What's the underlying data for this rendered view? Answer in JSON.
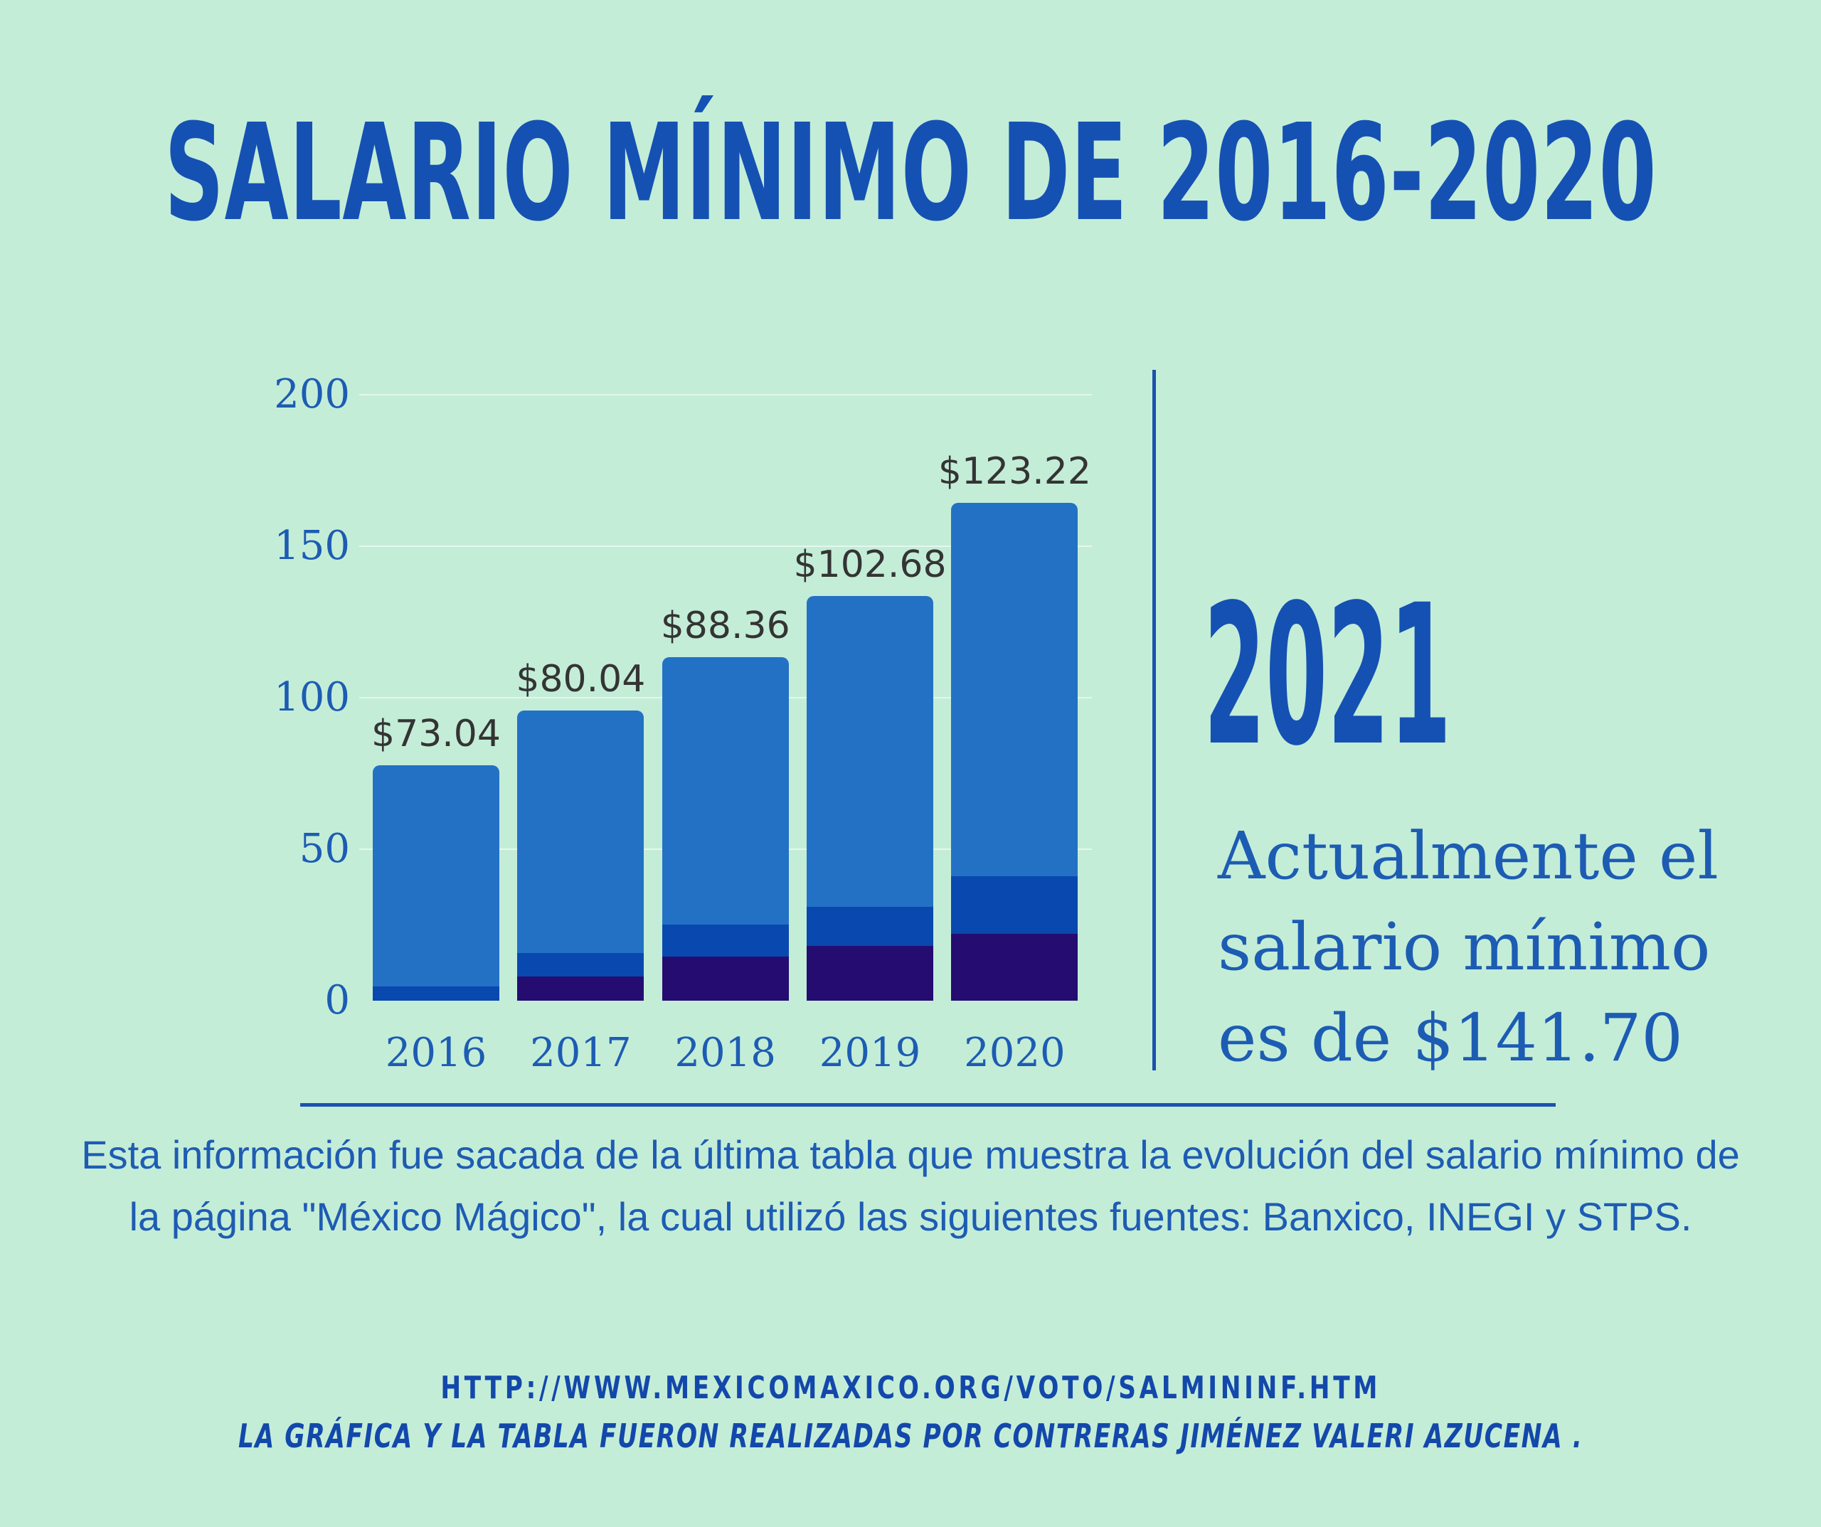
{
  "page": {
    "background": "#c4edd8",
    "accent_blue": "#1551b3",
    "line_blue": "#1c52ae"
  },
  "title": {
    "text": "SALARIO MÍNIMO DE 2016-2020"
  },
  "chart_data": {
    "type": "bar",
    "stacked": true,
    "categories": [
      "2016",
      "2017",
      "2018",
      "2019",
      "2020"
    ],
    "series": [
      {
        "name": "segmento-inferior-morado",
        "color": "#250c70",
        "values": [
          0,
          8,
          14.6,
          18,
          22
        ]
      },
      {
        "name": "segmento-medio-azul",
        "color": "#0948ae",
        "values": [
          4.7,
          7.7,
          10.5,
          13,
          19
        ]
      },
      {
        "name": "salario-minimo-azul-claro",
        "color": "#2371c5",
        "values": [
          73.04,
          80.04,
          88.36,
          102.68,
          123.22
        ]
      }
    ],
    "bar_value_labels": [
      "$73.04",
      "$80.04",
      "$88.36",
      "$102.68",
      "$123.22"
    ],
    "yticks": [
      0,
      50,
      100,
      150,
      200
    ],
    "ylim": [
      0,
      200
    ],
    "grid": "horizontal faint white gridlines",
    "legend": "none",
    "value_label_color": "#343434",
    "axis_text_color": "#1d5cb3"
  },
  "side_panel": {
    "year": "2021",
    "line1": "Actualmente el",
    "line2": "salario mínimo",
    "line3": "es de $141.70"
  },
  "footer": {
    "paragraph_line1": "Esta información fue sacada de la última tabla que muestra la evolución del salario mínimo de",
    "paragraph_line2": "la página \"México Mágico\", la cual utilizó las siguientes fuentes: Banxico, INEGI y STPS.",
    "url": "HTTP://WWW.MEXICOMAXICO.ORG/VOTO/SALMININF.HTM",
    "credit": "LA GRÁFICA Y LA TABLA FUERON REALIZADAS POR CONTRERAS JIMÉNEZ VALERI AZUCENA ."
  }
}
